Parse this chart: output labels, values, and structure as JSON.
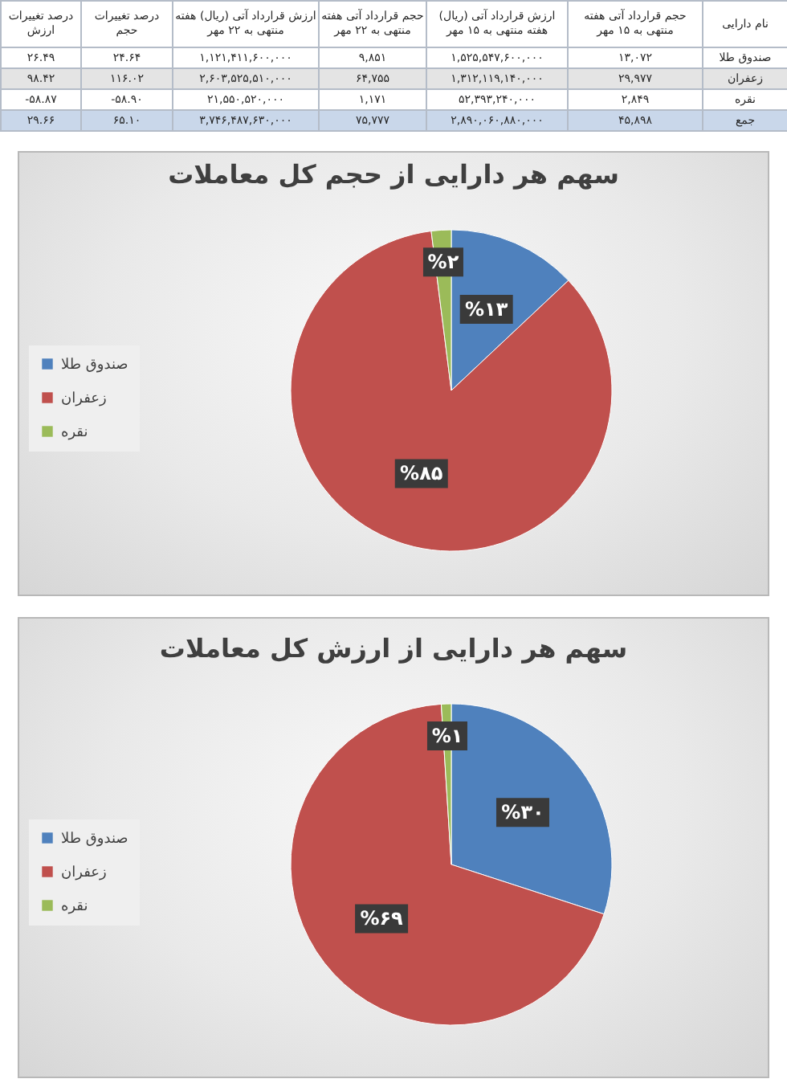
{
  "chart_data": [
    {
      "type": "other",
      "ylabel": "نام دارایی",
      "categories": [
        "درصد تغییرات ارزش",
        "درصد تغییرات حجم",
        "ارزش قرارداد آتی (ریال) هفته منتهی به ۲۲ مهر",
        "حجم قرارداد آتی هفته منتهی به ۲۲ مهر",
        "ارزش قرارداد آتی (ریال) هفته منتهی به ۱۵ مهر",
        "حجم قرارداد آتی هفته منتهی به ۱۵ مهر"
      ],
      "y_categories": [
        "صندوق طلا",
        "زعفران",
        "نقره",
        "جمع"
      ],
      "cell_labels": [
        [
          "۲۶.۴۹",
          "۲۴.۶۴",
          "۱,۱۲۱,۴۱۱,۶۰۰,۰۰۰",
          "۹,۸۵۱",
          "۱,۵۲۵,۵۴۷,۶۰۰,۰۰۰",
          "۱۳,۰۷۲"
        ],
        [
          "۹۸.۴۲",
          "۱۱۶.۰۲",
          "۲,۶۰۳,۵۲۵,۵۱۰,۰۰۰",
          "۶۴,۷۵۵",
          "۱,۳۱۲,۱۱۹,۱۴۰,۰۰۰",
          "۲۹,۹۷۷"
        ],
        [
          "-۵۸.۸۷",
          "-۵۸.۹۰",
          "۲۱,۵۵۰,۵۲۰,۰۰۰",
          "۱,۱۷۱",
          "۵۲,۳۹۳,۲۴۰,۰۰۰",
          "۲,۸۴۹"
        ],
        [
          "۲۹.۶۶",
          "۶۵.۱۰",
          "۳,۷۴۶,۴۸۷,۶۳۰,۰۰۰",
          "۷۵,۷۷۷",
          "۲,۸۹۰,۰۶۰,۸۸۰,۰۰۰",
          "۴۵,۸۹۸"
        ]
      ]
    },
    {
      "type": "pie",
      "title": "سهم هر دارایی از حجم کل معاملات",
      "categories": [
        "صندوق طلا",
        "زعفران",
        "نقره"
      ],
      "values": [
        13,
        85,
        2
      ],
      "colors": [
        "#4f81bd",
        "#c0504d",
        "#9bbb59"
      ],
      "value_labels": [
        "%۱۳",
        "%۸۵",
        "%۲"
      ],
      "legend": "left"
    },
    {
      "type": "pie",
      "title": "سهم هر دارایی از ارزش کل معاملات",
      "categories": [
        "صندوق طلا",
        "زعفران",
        "نقره"
      ],
      "values": [
        30,
        69,
        1
      ],
      "colors": [
        "#4f81bd",
        "#c0504d",
        "#9bbb59"
      ],
      "value_labels": [
        "%۳۰",
        "%۶۹",
        "%۱"
      ],
      "legend": "left"
    }
  ]
}
